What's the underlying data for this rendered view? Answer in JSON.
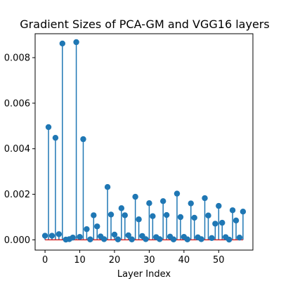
{
  "chart_data": {
    "type": "stem",
    "title": "Gradient Sizes of PCA-GM and VGG16 layers",
    "xlabel": "Layer Index",
    "ylabel": "",
    "xlim": [
      -2.85,
      59.85
    ],
    "ylim": [
      -0.00045,
      0.00905
    ],
    "xticks": [
      0,
      10,
      20,
      30,
      40,
      50
    ],
    "yticks": [
      0.0,
      0.002,
      0.004,
      0.006,
      0.008
    ],
    "ytick_labels": [
      "0.000",
      "0.002",
      "0.004",
      "0.006",
      "0.008"
    ],
    "baseline": 0,
    "grid": false,
    "legend": "none",
    "x": [
      0,
      1,
      2,
      3,
      4,
      5,
      6,
      7,
      8,
      9,
      10,
      11,
      12,
      13,
      14,
      15,
      16,
      17,
      18,
      19,
      20,
      21,
      22,
      23,
      24,
      25,
      26,
      27,
      28,
      29,
      30,
      31,
      32,
      33,
      34,
      35,
      36,
      37,
      38,
      39,
      40,
      41,
      42,
      43,
      44,
      45,
      46,
      47,
      48,
      49,
      50,
      51,
      52,
      53,
      54,
      55,
      56,
      57
    ],
    "values": [
      0.00018,
      0.00495,
      0.00018,
      0.00448,
      0.00025,
      0.00862,
      1e-05,
      3e-05,
      0.0001,
      0.00868,
      0.00013,
      0.00442,
      0.00047,
      2e-05,
      0.00108,
      0.00059,
      0.00015,
      3e-05,
      0.00232,
      0.00111,
      0.00023,
      2e-05,
      0.00139,
      0.00108,
      0.0002,
      2e-05,
      0.00189,
      0.0009,
      0.00017,
      3e-05,
      0.00161,
      0.00104,
      0.00012,
      3e-05,
      0.0017,
      0.00109,
      0.00014,
      2e-05,
      0.00203,
      0.001,
      0.00013,
      2e-05,
      0.0016,
      0.00097,
      0.00011,
      3e-05,
      0.00183,
      0.00107,
      8e-05,
      0.00071,
      0.00149,
      0.00075,
      0.00012,
      1e-05,
      0.0013,
      0.00085,
      0.0001,
      0.00124
    ],
    "colors": {
      "stem": "#1f77b4",
      "marker": "#1f77b4",
      "baseline": "#d62728",
      "axes": "#000000"
    }
  }
}
